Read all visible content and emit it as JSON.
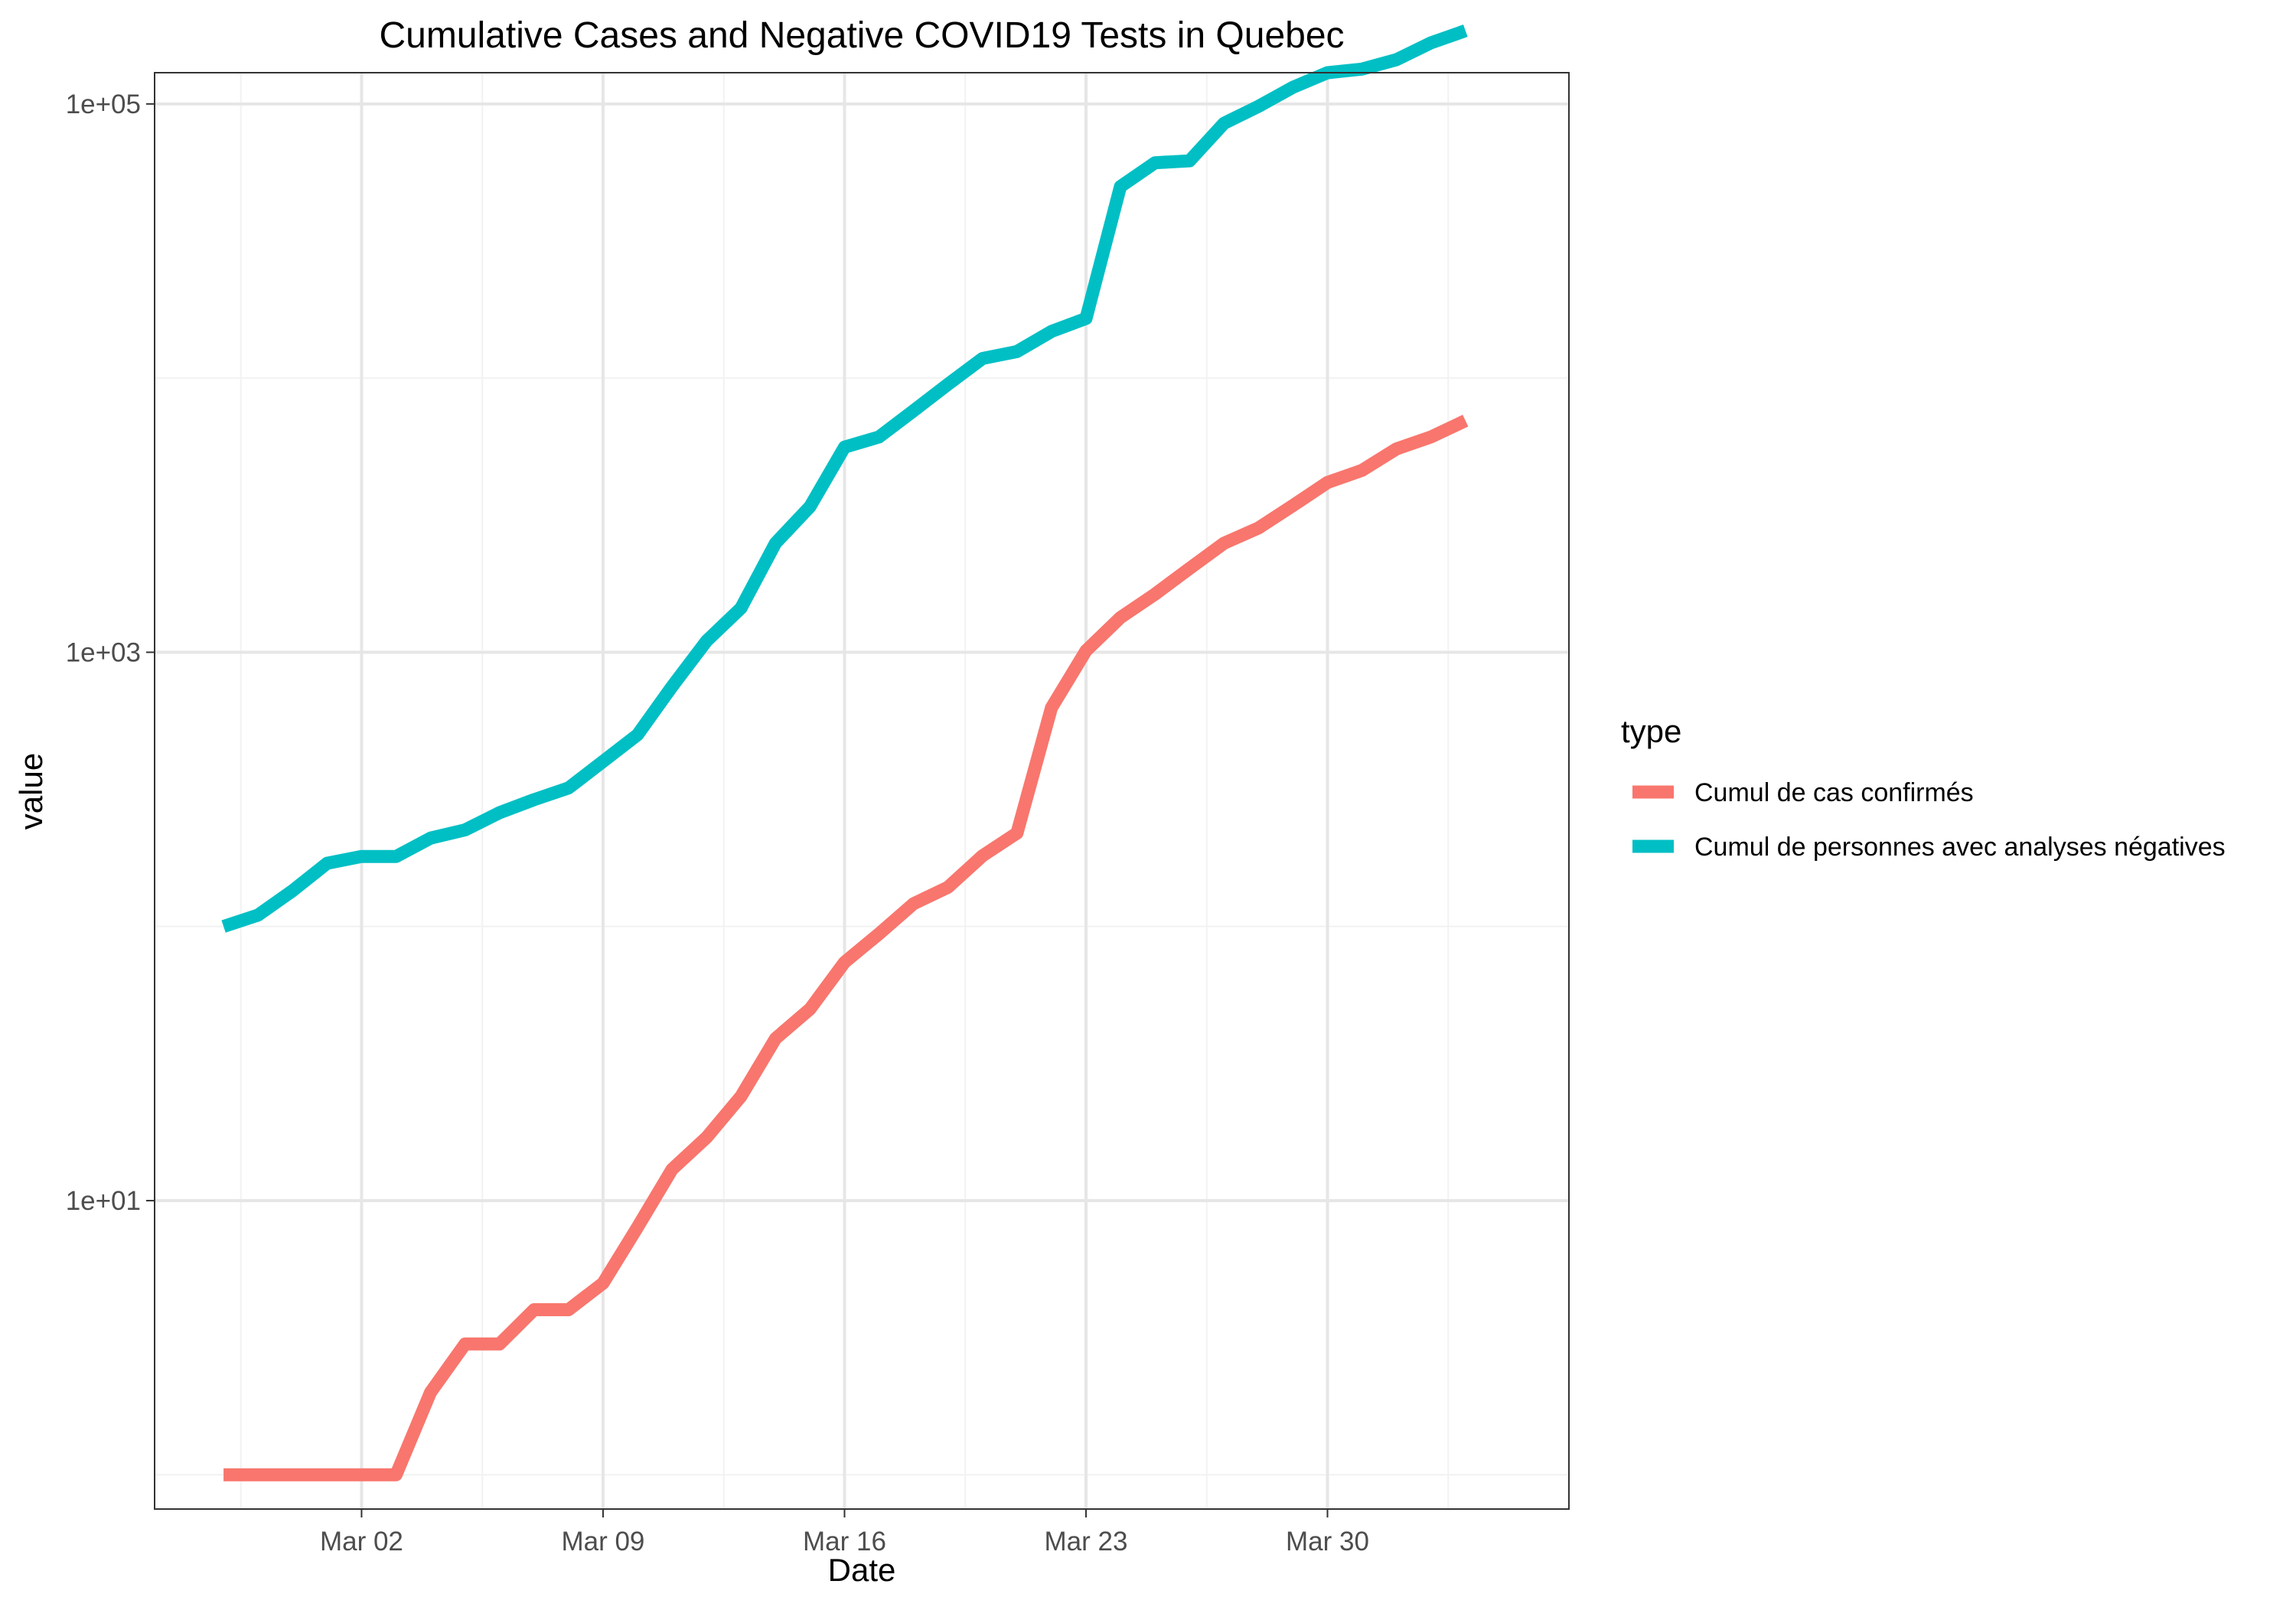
{
  "chart_data": {
    "type": "line",
    "title": "Cumulative Cases and Negative COVID19 Tests in Quebec",
    "xlabel": "Date",
    "ylabel": "value",
    "yscale": "log10",
    "ylim": [
      0.75,
      130000
    ],
    "xlim": [
      "2020-02-25",
      "2020-04-06"
    ],
    "x_ticks": [
      {
        "date": "2020-03-02",
        "label": "Mar 02"
      },
      {
        "date": "2020-03-09",
        "label": "Mar 09"
      },
      {
        "date": "2020-03-16",
        "label": "Mar 16"
      },
      {
        "date": "2020-03-23",
        "label": "Mar 23"
      },
      {
        "date": "2020-03-30",
        "label": "Mar 30"
      }
    ],
    "y_ticks": [
      {
        "value": 10,
        "label": "1e+01"
      },
      {
        "value": 1000,
        "label": "1e+03"
      },
      {
        "value": 100000,
        "label": "1e+05"
      }
    ],
    "grid": true,
    "legend": {
      "title": "type",
      "position": "right"
    },
    "x": [
      "2020-02-27",
      "2020-02-28",
      "2020-02-29",
      "2020-03-01",
      "2020-03-02",
      "2020-03-03",
      "2020-03-04",
      "2020-03-05",
      "2020-03-06",
      "2020-03-07",
      "2020-03-08",
      "2020-03-09",
      "2020-03-10",
      "2020-03-11",
      "2020-03-12",
      "2020-03-13",
      "2020-03-14",
      "2020-03-15",
      "2020-03-16",
      "2020-03-17",
      "2020-03-18",
      "2020-03-19",
      "2020-03-20",
      "2020-03-21",
      "2020-03-22",
      "2020-03-23",
      "2020-03-24",
      "2020-03-25",
      "2020-03-26",
      "2020-03-27",
      "2020-03-28",
      "2020-03-29",
      "2020-03-30",
      "2020-03-31",
      "2020-04-01",
      "2020-04-02",
      "2020-04-03"
    ],
    "series": [
      {
        "name": "Cumul de cas confirmés",
        "color": "#F8766D",
        "values": [
          1,
          1,
          1,
          1,
          1,
          1,
          2,
          3,
          3,
          4,
          4,
          5,
          8,
          13,
          17,
          24,
          39,
          50,
          74,
          94,
          121,
          139,
          181,
          219,
          628,
          1013,
          1339,
          1629,
          2021,
          2498,
          2840,
          3430,
          4162,
          4611,
          5518,
          6101,
          6997
        ]
      },
      {
        "name": "Cumul de personnes avec analyses négatives",
        "color": "#00BFC4",
        "values": [
          100,
          110,
          135,
          170,
          180,
          180,
          210,
          225,
          260,
          290,
          320,
          400,
          500,
          750,
          1100,
          1450,
          2500,
          3400,
          5600,
          6100,
          7600,
          9500,
          11800,
          12500,
          14800,
          16500,
          50000,
          61000,
          62000,
          85000,
          98000,
          115000,
          130000,
          134000,
          145000,
          167000,
          185000
        ]
      }
    ]
  }
}
